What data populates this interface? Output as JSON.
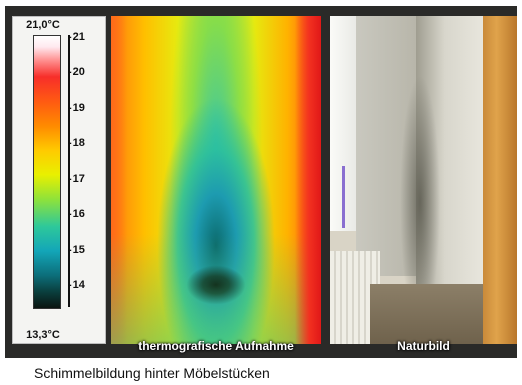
{
  "scale": {
    "max_label": "21,0°C",
    "min_label": "13,3°C",
    "ticks": [
      "21",
      "20",
      "19",
      "18",
      "17",
      "16",
      "15",
      "14"
    ]
  },
  "panels": {
    "thermal_label": "thermografische Aufnahme",
    "photo_label": "Naturbild"
  },
  "caption": "Schimmelbildung hinter Möbelstücken"
}
